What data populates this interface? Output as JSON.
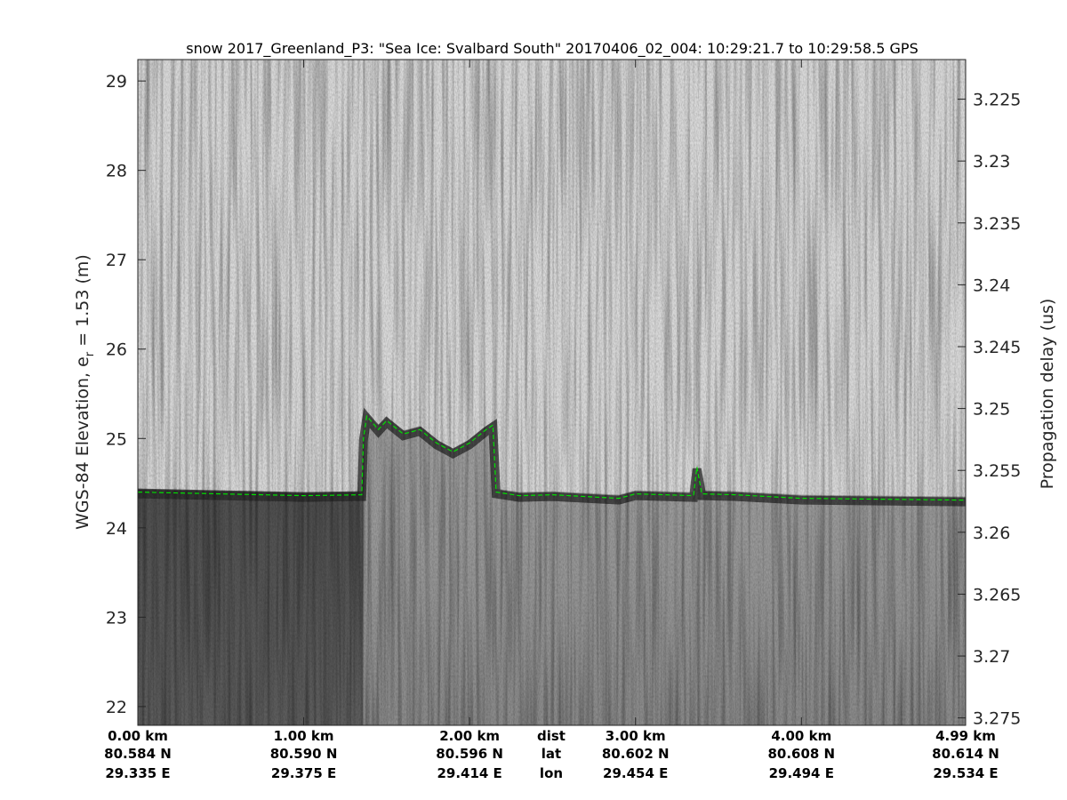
{
  "chart_data": {
    "type": "heatmap",
    "title": "snow 2017_Greenland_P3: \"Sea Ice: Svalbard South\"  20170406_02_004: 10:29:21.7 to 10:29:58.5 GPS",
    "ylabel": {
      "main": "WGS-84 Elevation, e",
      "sub": "r",
      "rest": " = 1.53 (m)"
    },
    "y2label": "Propagation delay (us)",
    "colormap": "gray",
    "ylim": [
      21.79,
      29.24
    ],
    "y2lim": [
      3.2218,
      3.2756
    ],
    "xlim_km": [
      0,
      4.99
    ],
    "yticks": [
      "22",
      "23",
      "24",
      "25",
      "26",
      "27",
      "28",
      "29"
    ],
    "y2ticks": [
      "3.225",
      "3.23",
      "3.235",
      "3.24",
      "3.245",
      "3.25",
      "3.255",
      "3.26",
      "3.265",
      "3.27",
      "3.275"
    ],
    "xticks": [
      {
        "km": 0,
        "dist": "0.00 km",
        "lat": "80.584 N",
        "lon": "29.335 E"
      },
      {
        "km": 1,
        "dist": "1.00 km",
        "lat": "80.590 N",
        "lon": "29.375 E"
      },
      {
        "km": 2,
        "dist": "2.00 km",
        "lat": "80.596 N",
        "lon": "29.414 E"
      },
      {
        "km": 3,
        "dist": "3.00 km",
        "lat": "80.602 N",
        "lon": "29.454 E"
      },
      {
        "km": 4,
        "dist": "4.00 km",
        "lat": "80.608 N",
        "lon": "29.494 E"
      },
      {
        "km": 4.99,
        "dist": "4.99 km",
        "lat": "80.614 N",
        "lon": "29.534 E"
      }
    ],
    "row_labels": {
      "dist": "dist",
      "lat": "lat",
      "lon": "lon"
    },
    "surface_line": {
      "color": "#00e000",
      "style": "dashed",
      "points": [
        [
          0,
          24.4
        ],
        [
          0.5,
          24.38
        ],
        [
          1.0,
          24.36
        ],
        [
          1.35,
          24.37
        ],
        [
          1.36,
          25.0
        ],
        [
          1.38,
          25.25
        ],
        [
          1.45,
          25.1
        ],
        [
          1.5,
          25.2
        ],
        [
          1.6,
          25.05
        ],
        [
          1.7,
          25.1
        ],
        [
          1.8,
          24.95
        ],
        [
          1.9,
          24.85
        ],
        [
          2.0,
          24.95
        ],
        [
          2.1,
          25.1
        ],
        [
          2.14,
          25.15
        ],
        [
          2.16,
          24.4
        ],
        [
          2.3,
          24.36
        ],
        [
          2.5,
          24.37
        ],
        [
          2.9,
          24.33
        ],
        [
          3.0,
          24.38
        ],
        [
          3.35,
          24.36
        ],
        [
          3.37,
          24.68
        ],
        [
          3.4,
          24.38
        ],
        [
          3.6,
          24.37
        ],
        [
          4.0,
          24.33
        ],
        [
          4.5,
          24.32
        ],
        [
          4.99,
          24.31
        ]
      ]
    }
  }
}
